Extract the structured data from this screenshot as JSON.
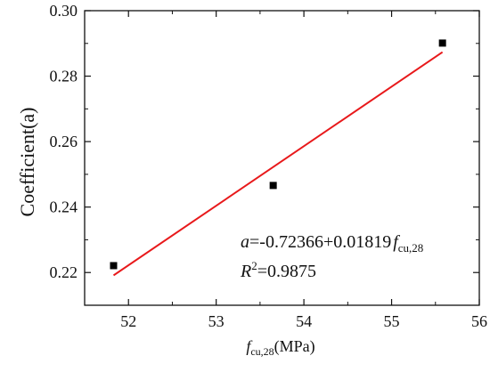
{
  "chart_data": {
    "type": "scatter",
    "xlabel": {
      "symbol": "f",
      "subscript": "cu,28",
      "unit": "(MPa)"
    },
    "ylabel": "Coefficient(a)",
    "xlim": [
      51.5,
      56
    ],
    "ylim": [
      0.21,
      0.3
    ],
    "xticks": [
      52,
      53,
      54,
      55,
      56
    ],
    "yticks": [
      0.22,
      0.24,
      0.26,
      0.28,
      0.3
    ],
    "xtick_labels": [
      "52",
      "53",
      "54",
      "55",
      "56"
    ],
    "ytick_labels": [
      "0.22",
      "0.24",
      "0.26",
      "0.28",
      "0.30"
    ],
    "grid": false,
    "series": [
      {
        "marker": "square",
        "color": "#000000",
        "points": [
          {
            "x": 51.83,
            "y": 0.2221
          },
          {
            "x": 53.65,
            "y": 0.2466
          },
          {
            "x": 55.58,
            "y": 0.2901
          }
        ]
      }
    ],
    "fit_line": {
      "color": "#e8191b",
      "intercept": -0.72366,
      "slope": 0.01819,
      "x_start": 51.83,
      "x_end": 55.58
    },
    "annotations": {
      "equation": {
        "lhs": "a",
        "rhs": "=-0.72366+0.01819",
        "symbol": "f",
        "subscript": "cu,28"
      },
      "r2": {
        "symbol": "R",
        "superscript": "2",
        "value": "=0.9875"
      }
    }
  }
}
